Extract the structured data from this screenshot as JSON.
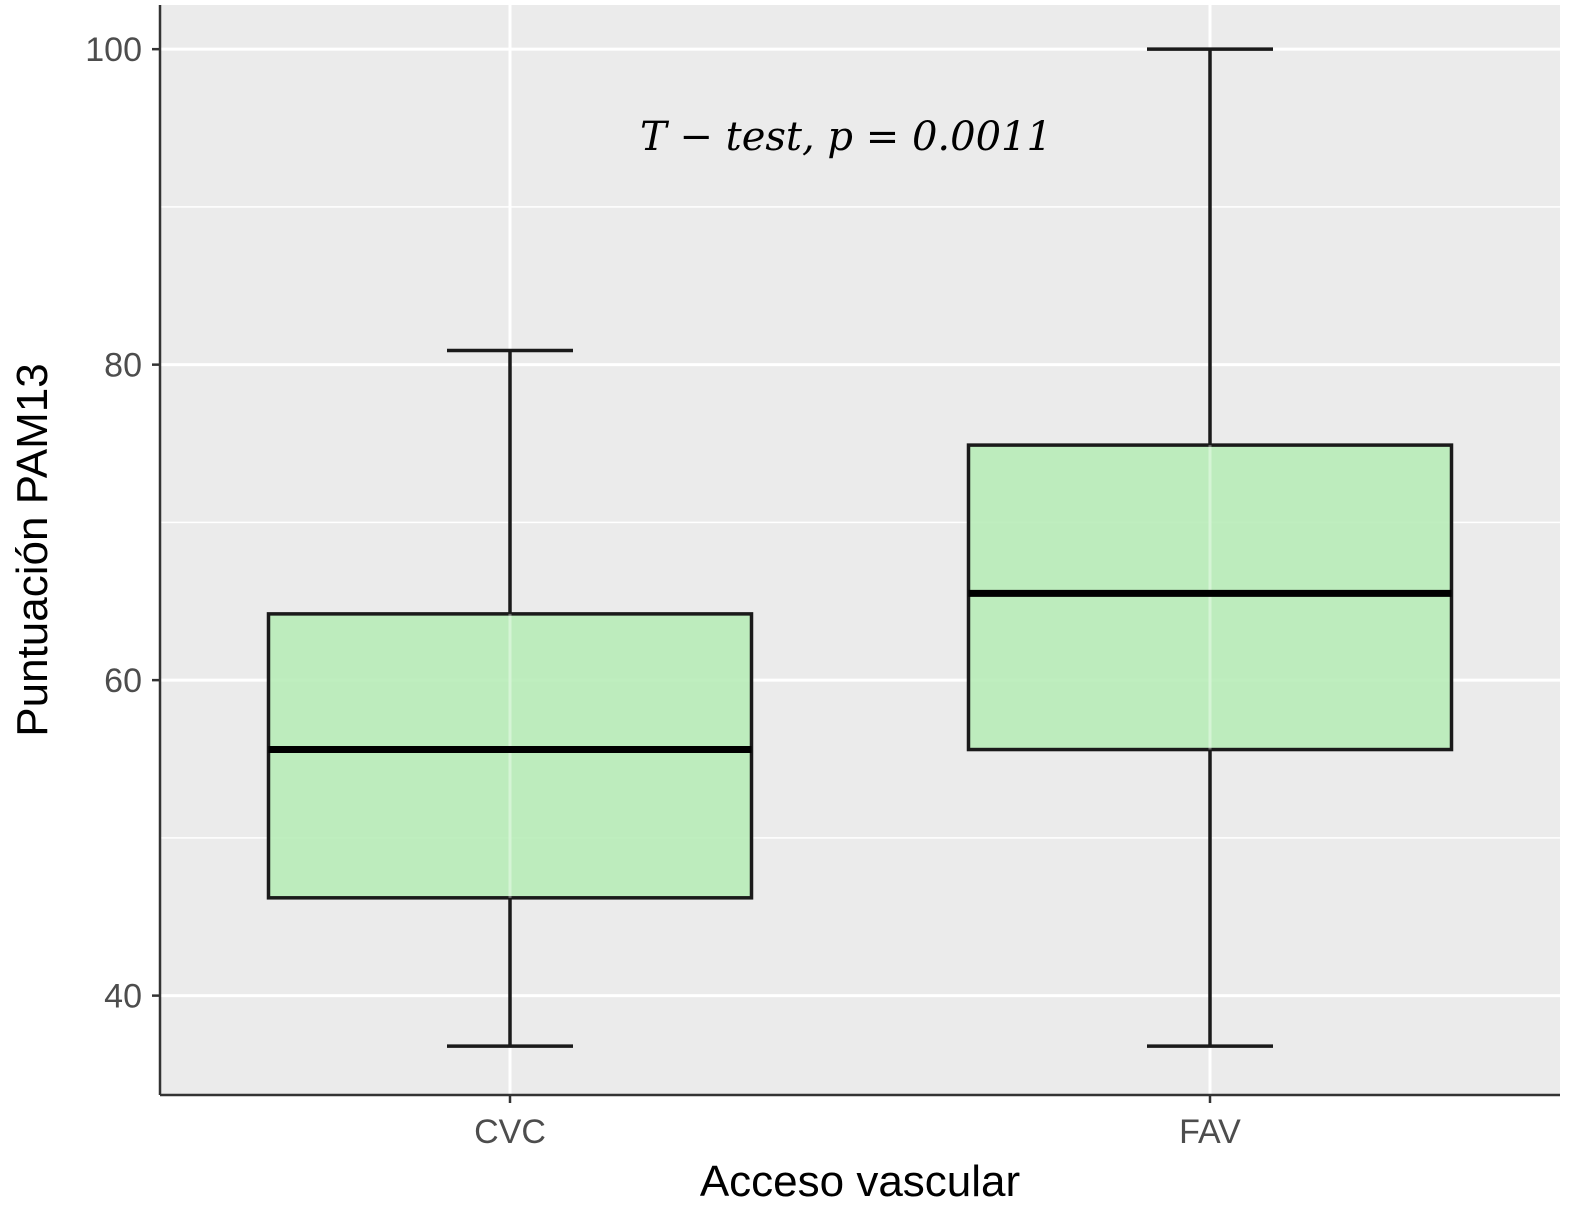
{
  "chart_data": {
    "type": "boxplot",
    "title": "",
    "xlabel": "Acceso vascular",
    "ylabel": "Puntuación PAM13",
    "ylim": [
      33.7,
      102.8
    ],
    "yticks": [
      40,
      60,
      80,
      100
    ],
    "grid": true,
    "legend": "none",
    "categories": [
      "CVC",
      "FAV"
    ],
    "boxes": [
      {
        "category": "CVC",
        "min": 36.8,
        "q1": 46.2,
        "median": 55.6,
        "q3": 64.2,
        "max": 80.9
      },
      {
        "category": "FAV",
        "min": 36.8,
        "q1": 55.6,
        "median": 65.5,
        "q3": 74.9,
        "max": 100.0
      }
    ],
    "annotation": "T − test, p = 0.0011",
    "annotation_position": {
      "x_between": [
        "CVC",
        "FAV"
      ],
      "y": 94.5
    },
    "colors": {
      "panel": "#ebebeb",
      "grid": "#ffffff",
      "box_fill": "#b8ecb8",
      "box_stroke": "#1a1a1a",
      "axis": "#333333"
    }
  }
}
